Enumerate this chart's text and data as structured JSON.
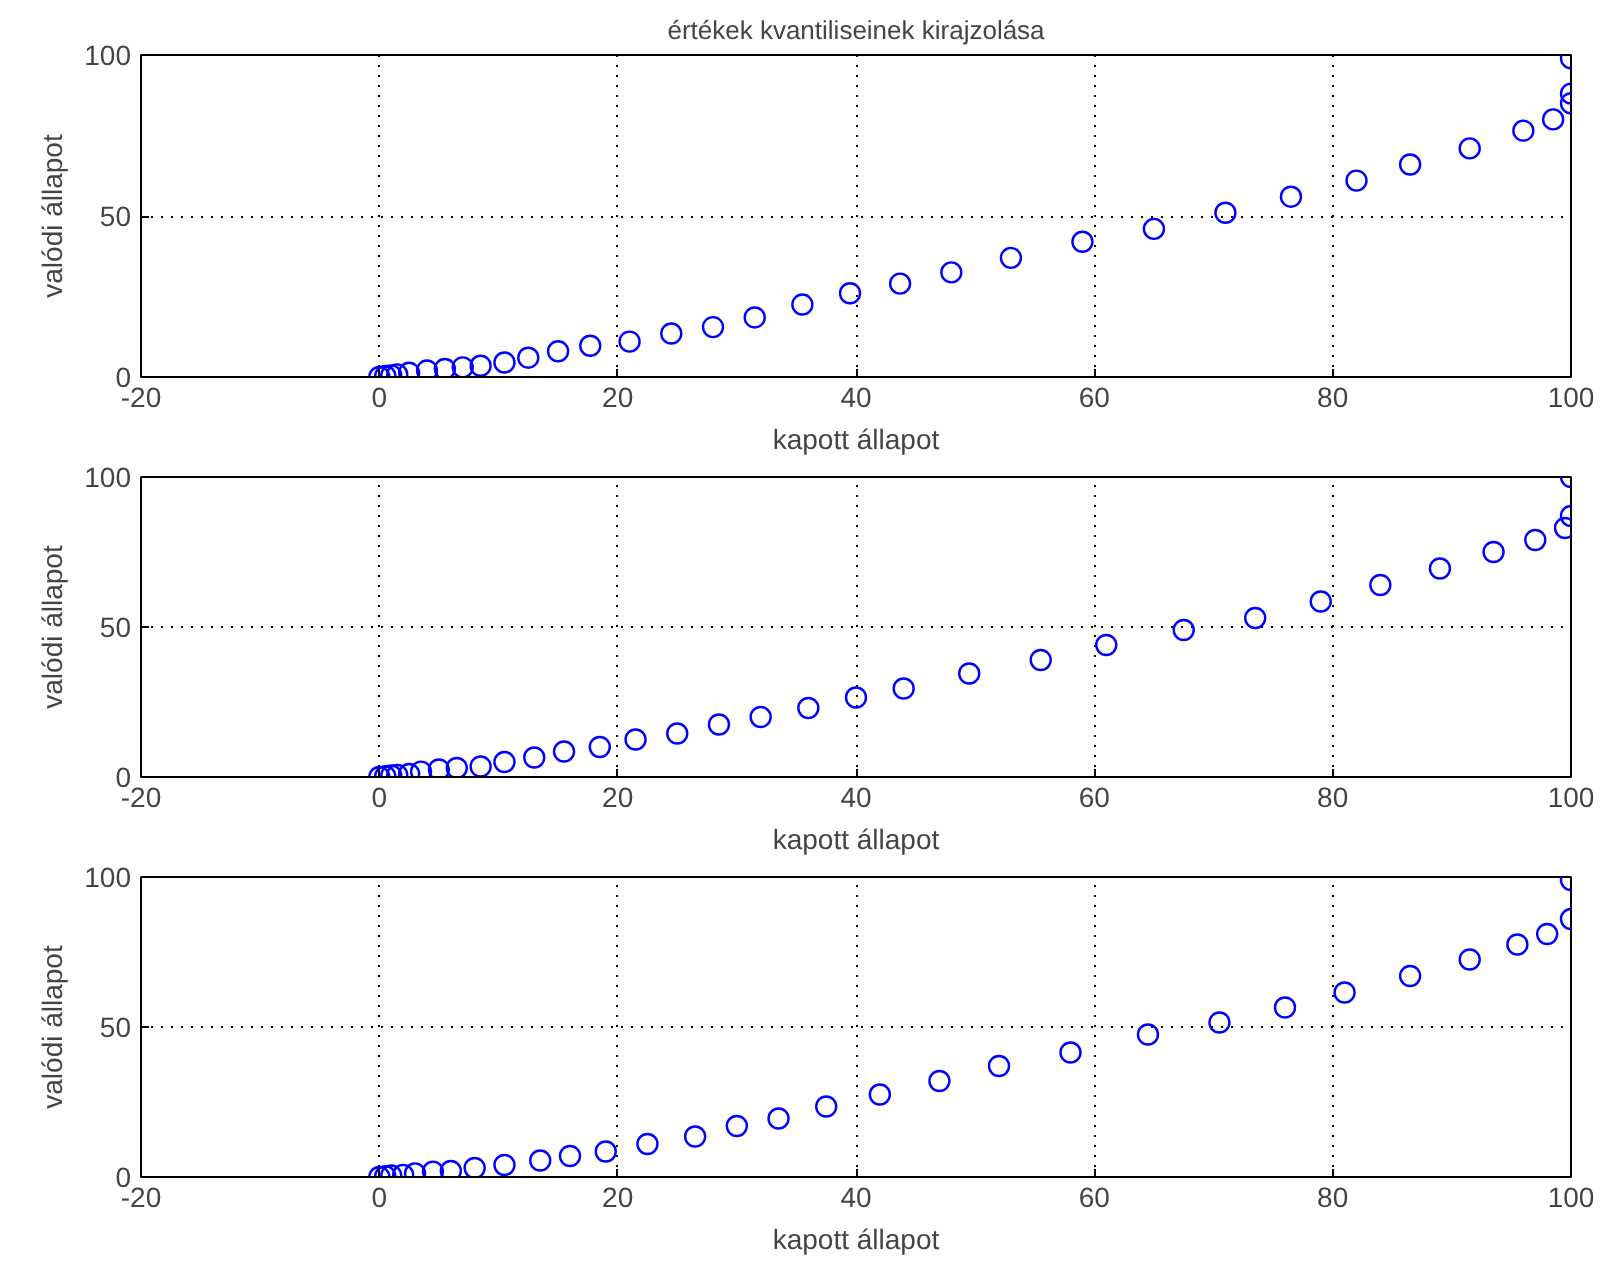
{
  "chart_data": [
    {
      "type": "scatter",
      "title": "értékek kvantiliseinek kirajzolása",
      "xlabel": "kapott állapot",
      "ylabel": "valódi állapot",
      "color": "#0000ff",
      "marker": "circle",
      "grid": true,
      "xlim": [
        -20,
        100
      ],
      "ylim": [
        0,
        100
      ],
      "xticks": [
        -20,
        0,
        20,
        40,
        60,
        80,
        100
      ],
      "yticks": [
        0,
        50,
        100
      ],
      "x": [
        0,
        0.5,
        1,
        1.5,
        2.5,
        4,
        5.5,
        7,
        8.5,
        10.5,
        12.5,
        15,
        17.7,
        21,
        24.5,
        28,
        31.5,
        35.5,
        39.5,
        43.7,
        48,
        53,
        59,
        65,
        71,
        76.5,
        82,
        86.5,
        91.5,
        96,
        98.5,
        100,
        100,
        100
      ],
      "values": [
        0,
        0.3,
        0.5,
        0.8,
        1.3,
        2,
        2.5,
        3,
        3.5,
        4.5,
        6,
        8,
        9.7,
        11,
        13.5,
        15.5,
        18.5,
        22.5,
        26,
        29,
        32.5,
        37,
        42,
        46,
        51,
        56,
        61,
        66,
        71,
        76.5,
        80,
        85,
        88,
        99
      ]
    },
    {
      "type": "scatter",
      "xlabel": "kapott állapot",
      "ylabel": "valódi állapot",
      "color": "#0000ff",
      "marker": "circle",
      "grid": true,
      "xlim": [
        -20,
        100
      ],
      "ylim": [
        0,
        100
      ],
      "xticks": [
        -20,
        0,
        20,
        40,
        60,
        80,
        100
      ],
      "yticks": [
        0,
        50,
        100
      ],
      "x": [
        0,
        0.5,
        1,
        1.5,
        2.5,
        3.5,
        5,
        6.5,
        8.5,
        10.5,
        13,
        15.5,
        18.5,
        21.5,
        25,
        28.5,
        32,
        36,
        40,
        44,
        49.5,
        55.5,
        61,
        67.5,
        73.5,
        79,
        84,
        89,
        93.5,
        97,
        99.5,
        100,
        100
      ],
      "values": [
        0,
        0.3,
        0.5,
        0.7,
        1,
        1.8,
        2.5,
        3,
        3.5,
        5,
        6.5,
        8.5,
        10,
        12.5,
        14.5,
        17.5,
        20,
        23,
        26.5,
        29.5,
        34.5,
        39,
        44,
        49,
        53,
        58.5,
        64,
        69.5,
        75,
        79,
        83,
        87,
        100
      ]
    },
    {
      "type": "scatter",
      "xlabel": "kapott állapot",
      "ylabel": "valódi állapot",
      "color": "#0000ff",
      "marker": "circle",
      "grid": true,
      "xlim": [
        -20,
        100
      ],
      "ylim": [
        0,
        100
      ],
      "xticks": [
        -20,
        0,
        20,
        40,
        60,
        80,
        100
      ],
      "yticks": [
        0,
        50,
        100
      ],
      "x": [
        0,
        0.5,
        1,
        2,
        3,
        4.5,
        6,
        8,
        10.5,
        13.5,
        16,
        19,
        22.5,
        26.5,
        30,
        33.5,
        37.5,
        42,
        47,
        52,
        58,
        64.5,
        70.5,
        76,
        81,
        86.5,
        91.5,
        95.5,
        98,
        100,
        100
      ],
      "values": [
        0,
        0.3,
        0.5,
        0.7,
        1.2,
        1.8,
        2,
        3,
        4,
        5.5,
        7,
        8.5,
        11,
        13.5,
        17,
        19.5,
        23.5,
        27.5,
        32,
        37,
        41.5,
        47.5,
        51.5,
        56.5,
        61.5,
        67,
        72.5,
        77.5,
        81,
        86,
        99
      ]
    }
  ]
}
